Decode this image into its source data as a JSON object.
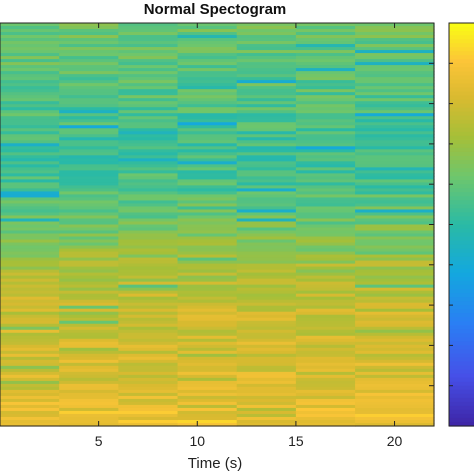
{
  "chart_data": {
    "type": "heatmap",
    "title": "Normal Spectogram",
    "xlabel": "Time (s)",
    "ylabel": "",
    "x_ticks": [
      5,
      10,
      15,
      20
    ],
    "xlim": [
      0,
      22
    ],
    "colormap": "parula",
    "colors": {
      "low": "#3e26a8",
      "mid": "#2ab7a8",
      "high": "#f9fb15",
      "background": "#ffffff",
      "axis": "#222222"
    },
    "time_segments": [
      0,
      3,
      6,
      9,
      12,
      15,
      18,
      22
    ],
    "row_profile": [
      {
        "y": 0.0,
        "value": 0.62
      },
      {
        "y": 0.1,
        "value": 0.6
      },
      {
        "y": 0.2,
        "value": 0.57
      },
      {
        "y": 0.3,
        "value": 0.54
      },
      {
        "y": 0.4,
        "value": 0.56
      },
      {
        "y": 0.5,
        "value": 0.63
      },
      {
        "y": 0.6,
        "value": 0.72
      },
      {
        "y": 0.7,
        "value": 0.78
      },
      {
        "y": 0.8,
        "value": 0.8
      },
      {
        "y": 0.9,
        "value": 0.82
      },
      {
        "y": 1.0,
        "value": 0.88
      }
    ],
    "colorbar_range": [
      0,
      1
    ]
  }
}
